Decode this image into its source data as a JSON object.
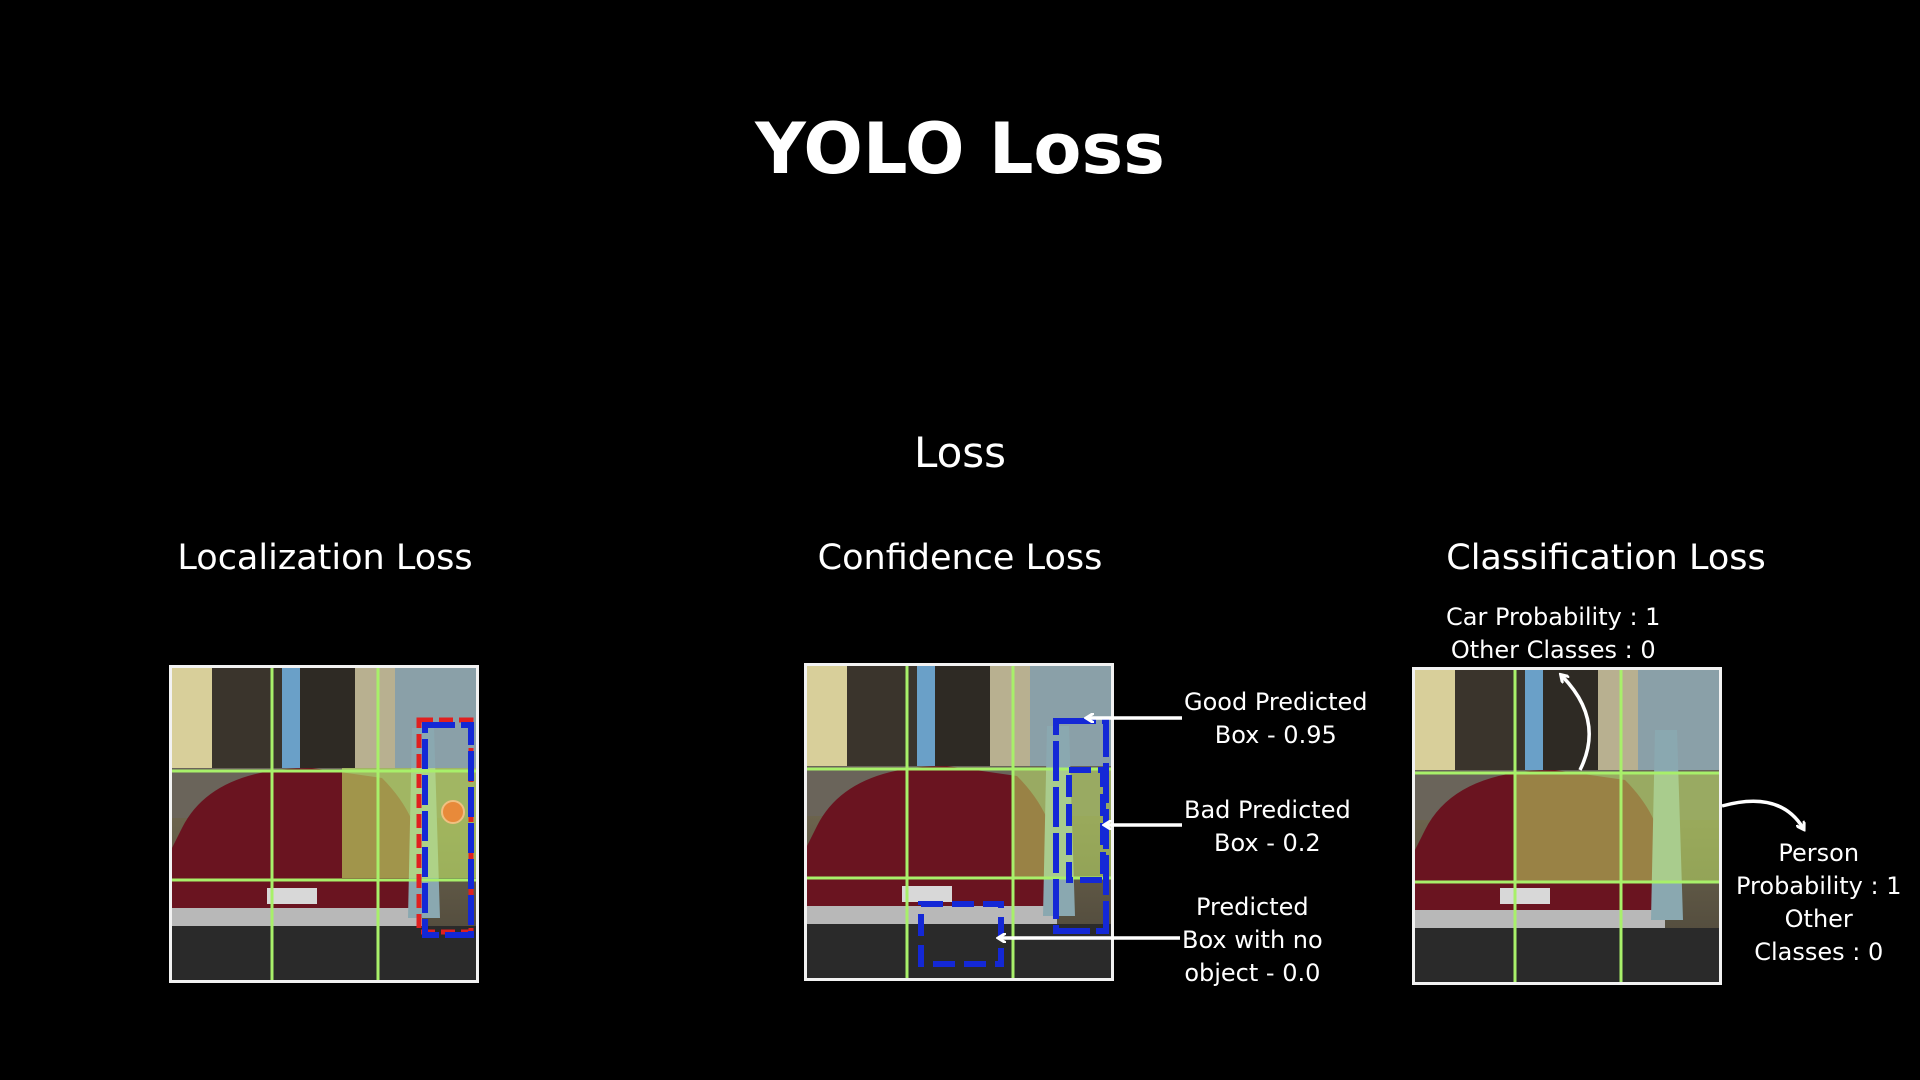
{
  "title": "YOLO Loss",
  "root_label": "Loss",
  "columns": [
    {
      "heading": "Localization Loss"
    },
    {
      "heading": "Confidence Loss"
    },
    {
      "heading": "Classification Loss"
    }
  ],
  "confidence_annotations": [
    {
      "line1": "Good Predicted",
      "line2": "Box - 0.95"
    },
    {
      "line1": "Bad Predicted",
      "line2": "Box - 0.2"
    },
    {
      "line1": "Predicted",
      "line2": "Box with no",
      "line3": "object - 0.0"
    }
  ],
  "classification_annotations": {
    "car": {
      "line1": "Car Probability : 1",
      "line2": "Other Classes : 0"
    },
    "person": {
      "line1": "Person",
      "line2": "Probability : 1",
      "line3": "Other",
      "line4": "Classes : 0"
    }
  },
  "colors": {
    "grid_line": "#a8f06a",
    "pred_box": "#1428d6",
    "gt_box": "#e02020",
    "center_dot": "#e88a3a",
    "highlight": "#c8f06a"
  }
}
